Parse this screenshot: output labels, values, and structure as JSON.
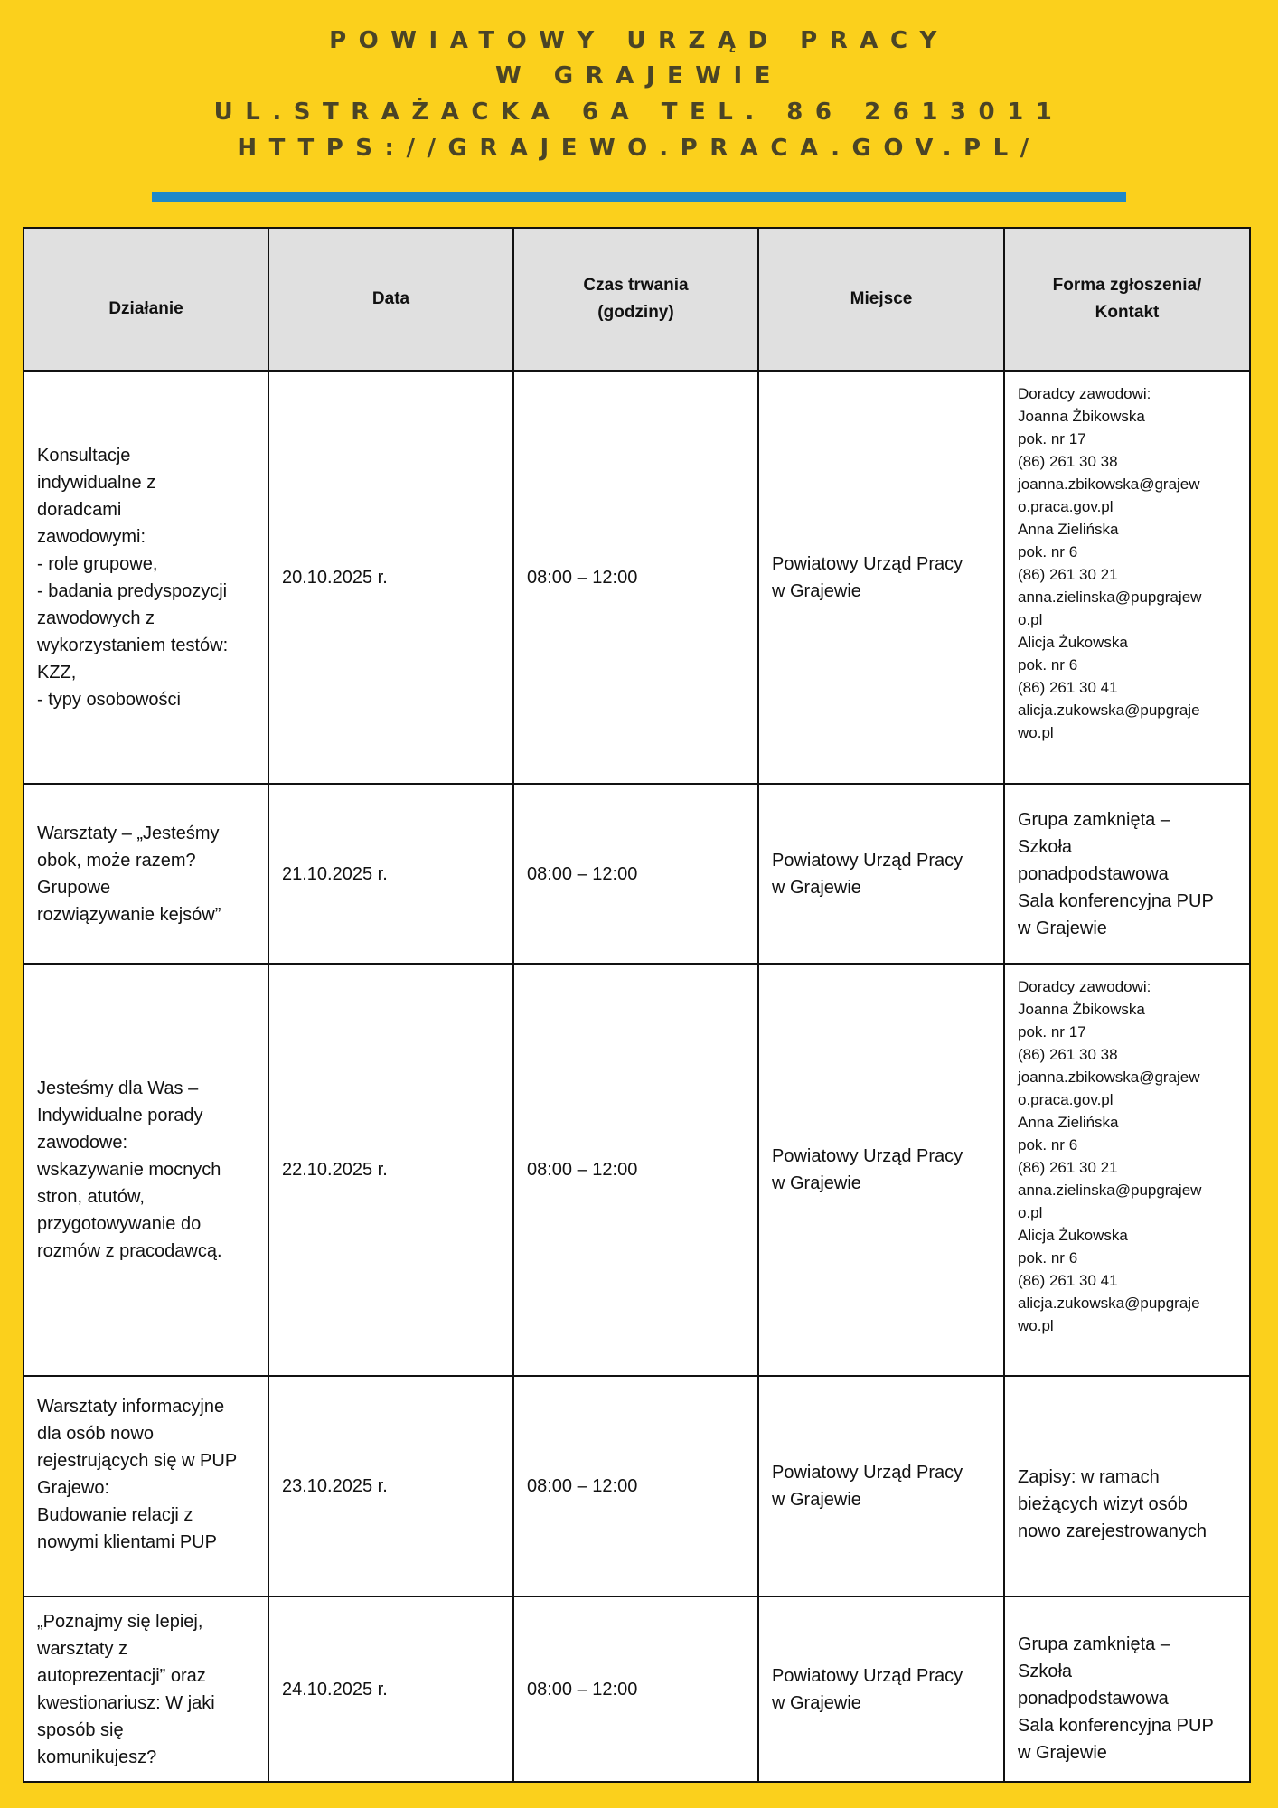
{
  "header": {
    "line1": "POWIATOWY URZĄD PRACY",
    "line2": "W GRAJEWIE",
    "line3": "UL.STRAŻACKA 6A TEL. 86 2613011",
    "line4": "HTTPS://GRAJEWO.PRACA.GOV.PL/",
    "accent_color": "#1F88C8",
    "background_color": "#FBD01C"
  },
  "table": {
    "columns": [
      "Działanie",
      "Data",
      "Czas trwania\n(godziny)",
      "Miejsce",
      "Forma zgłoszenia/\nKontakt"
    ],
    "rows": [
      {
        "action": "Konsultacje\nindywidualne z\ndoradcami\nzawodowymi:\n- role grupowe,\n- badania predyspozycji\nzawodowych z\nwykorzystaniem testów:\nKZZ,\n - typy osobowości",
        "date": "20.10.2025 r.",
        "time": "08:00 – 12:00",
        "place": "Powiatowy Urząd Pracy\n w Grajewie",
        "contact": "Doradcy zawodowi:\nJoanna Żbikowska\npok. nr 17\n(86) 261 30 38\njoanna.zbikowska@grajew\no.praca.gov.pl\nAnna Zielińska\npok. nr 6\n(86) 261 30 21\nanna.zielinska@pupgrajew\no.pl\nAlicja Żukowska\npok. nr 6\n(86) 261 30 41\nalicja.zukowska@pupgraje\nwo.pl"
      },
      {
        "action": "Warsztaty – „Jesteśmy\nobok, może razem?\nGrupowe\nrozwiązywanie kejsów”",
        "date": "21.10.2025 r.",
        "time": "08:00 – 12:00",
        "place": "Powiatowy Urząd Pracy\n w Grajewie",
        "contact": "Grupa zamknięta –\nSzkoła\nponadpodstawowa\nSala konferencyjna PUP\nw Grajewie"
      },
      {
        "action": "Jesteśmy dla Was –\nIndywidualne porady\nzawodowe:\nwskazywanie mocnych\nstron, atutów,\nprzygotowywanie do\nrozmów z pracodawcą.",
        "date": "22.10.2025 r.",
        "time": "08:00 – 12:00",
        "place": "Powiatowy Urząd Pracy\n w Grajewie",
        "contact": "Doradcy zawodowi:\nJoanna Żbikowska\npok. nr 17\n(86) 261 30 38\njoanna.zbikowska@grajew\no.praca.gov.pl\nAnna Zielińska\npok. nr 6\n(86) 261 30 21\nanna.zielinska@pupgrajew\no.pl\nAlicja Żukowska\npok. nr 6\n(86) 261 30 41\nalicja.zukowska@pupgraje\nwo.pl"
      },
      {
        "action": "Warsztaty informacyjne\ndla osób nowo\nrejestrujących się w PUP\nGrajewo:\nBudowanie relacji z\nnowymi klientami PUP",
        "date": "23.10.2025 r.",
        "time": "08:00 – 12:00",
        "place": "Powiatowy Urząd Pracy\n w Grajewie",
        "contact": "Zapisy: w ramach\nbieżących wizyt osób\nnowo zarejestrowanych"
      },
      {
        "action": " „Poznajmy się lepiej,\nwarsztaty z\nautoprezentacji” oraz\nkwestionariusz: W jaki\nsposób się\nkomunikujesz?",
        "date": "24.10.2025 r.",
        "time": "08:00 – 12:00",
        "place": "Powiatowy Urząd Pracy\n w Grajewie",
        "contact": "Grupa zamknięta –\nSzkoła\nponadpodstawowa\nSala konferencyjna PUP\nw Grajewie"
      }
    ]
  }
}
